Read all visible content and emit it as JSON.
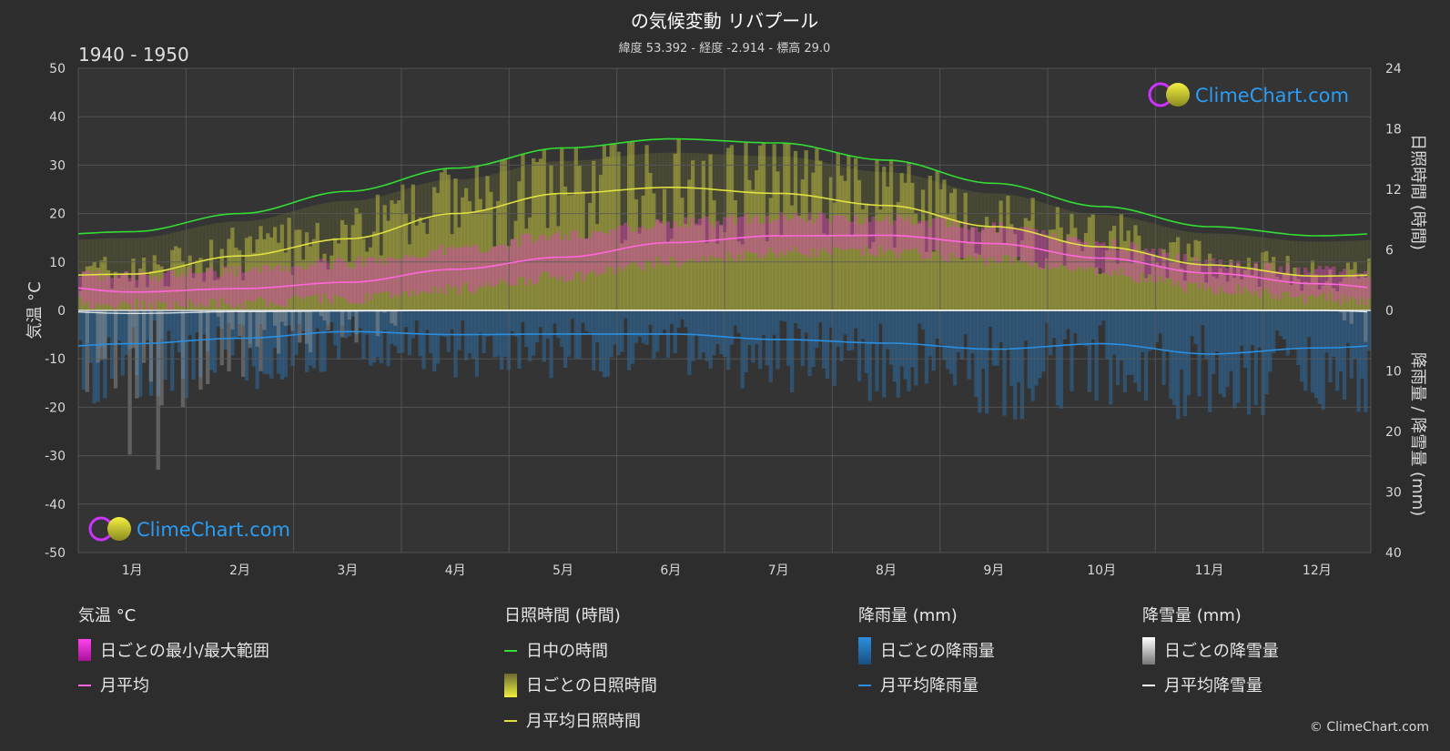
{
  "header": {
    "title": "の気候変動 リバプール",
    "subtitle": "緯度 53.392 - 経度 -2.914 - 標高 29.0",
    "period": "1940 - 1950"
  },
  "branding": {
    "logo_text": "ClimeChart.com",
    "copyright": "© ClimeChart.com"
  },
  "colors": {
    "background": "#2d2d2d",
    "daylight": "#33dd33",
    "sunshine": "#e0e040",
    "temp_avg": "#ff66dd",
    "temp_range": "#ee22cc",
    "rain": "#2a8fe0",
    "snow": "#dddddd"
  },
  "chart_data": {
    "type": "line",
    "title": "の気候変動 リバプール",
    "months": [
      "1月",
      "2月",
      "3月",
      "4月",
      "5月",
      "6月",
      "7月",
      "8月",
      "9月",
      "10月",
      "11月",
      "12月"
    ],
    "left_axis": {
      "label": "気温 °C",
      "min": -50,
      "max": 50,
      "ticks": [
        50,
        40,
        30,
        20,
        10,
        0,
        -10,
        -20,
        -30,
        -40,
        -50
      ]
    },
    "right_axis_top": {
      "label": "日照時間 (時間)",
      "min": 0,
      "max": 24,
      "ticks": [
        24,
        18,
        12,
        6,
        0
      ]
    },
    "right_axis_bottom": {
      "label": "降雨量 / 降雪量 (mm)",
      "min": 0,
      "max": 40,
      "ticks": [
        0,
        10,
        20,
        30,
        40
      ]
    },
    "grid": true,
    "series": [
      {
        "name": "日中の時間",
        "axis": "sun_hours",
        "values": [
          7.8,
          9.6,
          11.8,
          14.1,
          16.1,
          17.0,
          16.6,
          14.9,
          12.6,
          10.3,
          8.3,
          7.4
        ]
      },
      {
        "name": "月平均日照時間",
        "axis": "sun_hours",
        "values": [
          3.6,
          5.4,
          7.1,
          9.6,
          11.6,
          12.2,
          11.6,
          10.4,
          8.3,
          6.3,
          4.5,
          3.4
        ]
      },
      {
        "name": "月平均",
        "axis": "temp_c",
        "values": [
          3.8,
          4.5,
          5.8,
          8.5,
          11.0,
          14.0,
          15.4,
          15.5,
          13.8,
          10.8,
          7.7,
          5.5
        ]
      },
      {
        "name": "月平均降雨量",
        "axis": "precip_mm",
        "values": [
          5.5,
          4.6,
          3.5,
          4.0,
          3.9,
          3.9,
          4.8,
          5.4,
          6.4,
          5.5,
          7.2,
          6.2
        ]
      },
      {
        "name": "月平均降雪量",
        "axis": "precip_mm",
        "values": [
          0.5,
          0.2,
          0.1,
          0,
          0,
          0,
          0,
          0,
          0,
          0,
          0,
          0
        ]
      },
      {
        "name": "日ごとの最小/最大範囲",
        "axis": "temp_c",
        "min": [
          1.0,
          1.5,
          2.5,
          4.5,
          7.0,
          10.0,
          12.0,
          12.0,
          10.5,
          7.8,
          4.5,
          2.5
        ],
        "max": [
          7.0,
          8.0,
          9.8,
          12.5,
          15.5,
          18.0,
          19.2,
          19.0,
          17.0,
          13.8,
          10.0,
          8.0
        ]
      }
    ]
  },
  "legend": {
    "groups": [
      {
        "heading": "気温 °C",
        "items": [
          {
            "label": "日ごとの最小/最大範囲",
            "swatch": "range"
          },
          {
            "label": "月平均",
            "swatch": "line-pink"
          }
        ]
      },
      {
        "heading": "日照時間 (時間)",
        "items": [
          {
            "label": "日中の時間",
            "swatch": "line-green"
          },
          {
            "label": "日ごとの日照時間",
            "swatch": "sun"
          },
          {
            "label": "月平均日照時間",
            "swatch": "line-yellow"
          }
        ]
      },
      {
        "heading": "降雨量 (mm)",
        "items": [
          {
            "label": "日ごとの降雨量",
            "swatch": "rain"
          },
          {
            "label": "月平均降雨量",
            "swatch": "line-blue"
          }
        ]
      },
      {
        "heading": "降雪量 (mm)",
        "items": [
          {
            "label": "日ごとの降雪量",
            "swatch": "snow"
          },
          {
            "label": "月平均降雪量",
            "swatch": "line-white"
          }
        ]
      }
    ]
  }
}
